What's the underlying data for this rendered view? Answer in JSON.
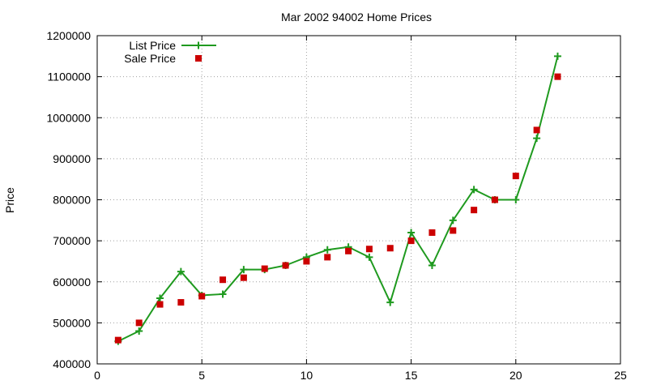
{
  "chart_data": {
    "type": "line",
    "title": "Mar 2002 94002 Home Prices",
    "xlabel": "",
    "ylabel": "Price",
    "xlim": [
      0,
      25
    ],
    "ylim": [
      400000,
      1200000
    ],
    "xticks": [
      0,
      5,
      10,
      15,
      20,
      25
    ],
    "yticks": [
      400000,
      500000,
      600000,
      700000,
      800000,
      900000,
      1000000,
      1100000,
      1200000
    ],
    "grid": true,
    "legend_position": "top-left",
    "series": [
      {
        "name": "List Price",
        "style": "line+cross-markers",
        "color": "#1f9a1f",
        "x": [
          1,
          2,
          3,
          4,
          5,
          6,
          7,
          8,
          9,
          10,
          11,
          12,
          13,
          14,
          15,
          16,
          17,
          18,
          19,
          20,
          21,
          22
        ],
        "y": [
          455000,
          480000,
          560000,
          625000,
          567000,
          570000,
          630000,
          630000,
          640000,
          660000,
          678000,
          685000,
          660000,
          550000,
          720000,
          640000,
          750000,
          825000,
          800000,
          800000,
          950000,
          1150000
        ]
      },
      {
        "name": "Sale Price",
        "style": "square-markers",
        "color": "#cc0000",
        "x": [
          1,
          2,
          3,
          4,
          5,
          6,
          7,
          8,
          9,
          10,
          11,
          12,
          13,
          14,
          15,
          16,
          17,
          18,
          19,
          20,
          21,
          22
        ],
        "y": [
          458000,
          500000,
          545000,
          550000,
          565000,
          605000,
          610000,
          632000,
          640000,
          650000,
          660000,
          675000,
          680000,
          682000,
          700000,
          720000,
          725000,
          775000,
          800000,
          858000,
          970000,
          1100000
        ]
      }
    ]
  }
}
